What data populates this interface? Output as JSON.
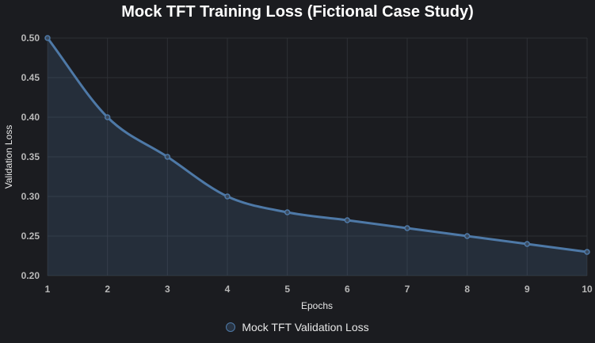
{
  "chart_data": {
    "type": "line",
    "title": "Mock TFT Training Loss (Fictional Case Study)",
    "xlabel": "Epochs",
    "ylabel": "Validation Loss",
    "x": [
      1,
      2,
      3,
      4,
      5,
      6,
      7,
      8,
      9,
      10
    ],
    "xlim": [
      1,
      10
    ],
    "ylim": [
      0.2,
      0.5
    ],
    "y_ticks": [
      "0.20",
      "0.25",
      "0.30",
      "0.35",
      "0.40",
      "0.45",
      "0.50"
    ],
    "grid": true,
    "fill": true,
    "legend_position": "bottom",
    "series": [
      {
        "name": "Mock TFT Validation Loss",
        "color": "#4e79a7",
        "values": [
          0.5,
          0.4,
          0.35,
          0.3,
          0.28,
          0.27,
          0.26,
          0.25,
          0.24,
          0.23
        ]
      }
    ]
  }
}
